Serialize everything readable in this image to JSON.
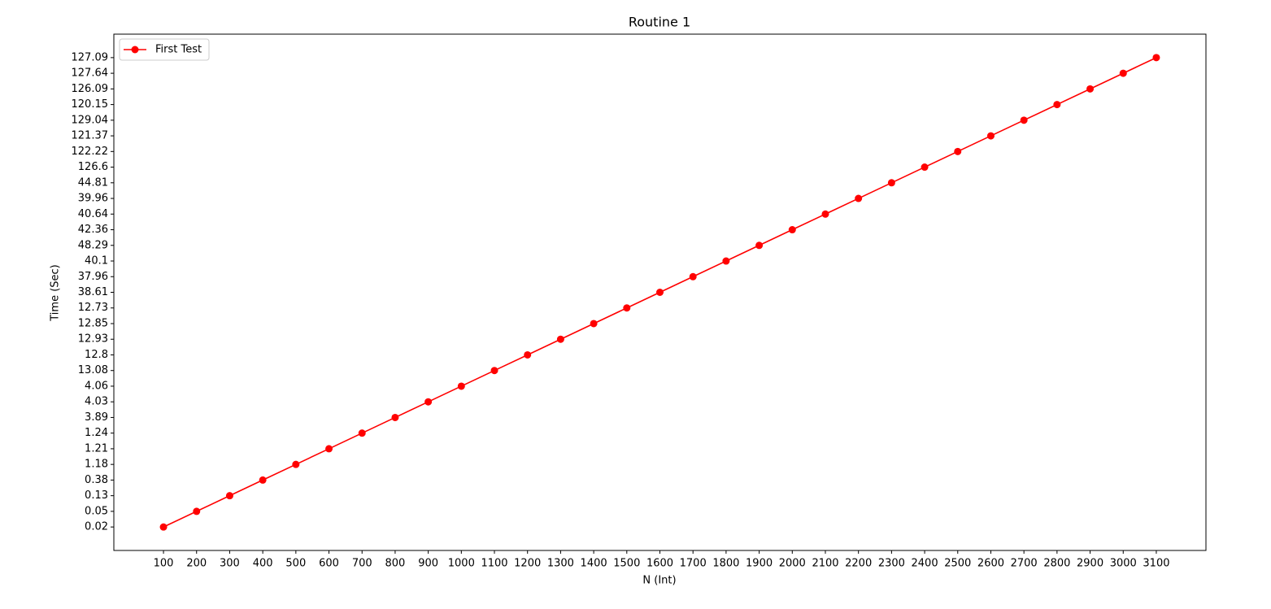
{
  "chart_data": {
    "type": "line",
    "title": "Routine 1",
    "x_label": "N (Int)",
    "y_label": "Time (Sec)",
    "x": [
      100,
      200,
      300,
      400,
      500,
      600,
      700,
      800,
      900,
      1000,
      1100,
      1200,
      1300,
      1400,
      1500,
      1600,
      1700,
      1800,
      1900,
      2000,
      2100,
      2200,
      2300,
      2400,
      2500,
      2600,
      2700,
      2800,
      2900,
      3000,
      3100
    ],
    "xlim": [
      -50,
      3250
    ],
    "xticks": [
      100,
      200,
      300,
      400,
      500,
      600,
      700,
      800,
      900,
      1000,
      1100,
      1200,
      1300,
      1400,
      1500,
      1600,
      1700,
      1800,
      1900,
      2000,
      2100,
      2200,
      2300,
      2400,
      2500,
      2600,
      2700,
      2800,
      2900,
      3000,
      3100
    ],
    "y_scale": "categorical",
    "y_categories": [
      0.02,
      0.05,
      0.13,
      0.38,
      1.18,
      1.21,
      1.24,
      3.89,
      4.03,
      4.06,
      13.08,
      12.8,
      12.93,
      12.85,
      12.73,
      38.61,
      37.96,
      40.1,
      48.29,
      42.36,
      40.64,
      39.96,
      44.81,
      126.6,
      122.22,
      121.37,
      129.04,
      120.15,
      126.09,
      127.64,
      127.09
    ],
    "series": [
      {
        "name": "First Test",
        "color": "#ff0000",
        "marker": "circle",
        "values": [
          0.02,
          0.05,
          0.13,
          0.38,
          1.18,
          1.21,
          1.24,
          3.89,
          4.03,
          4.06,
          13.08,
          12.8,
          12.93,
          12.85,
          12.73,
          38.61,
          37.96,
          40.1,
          48.29,
          42.36,
          40.64,
          39.96,
          44.81,
          126.6,
          122.22,
          121.37,
          129.04,
          120.15,
          126.09,
          127.64,
          127.09
        ]
      }
    ],
    "legend": "upper left",
    "grid": false
  }
}
